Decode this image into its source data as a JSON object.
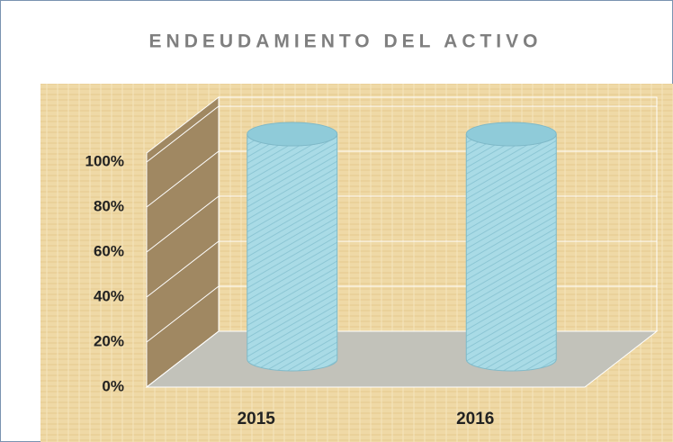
{
  "chart_data": {
    "type": "bar3d",
    "title": "ENDEUDAMIENTO DEL ACTIVO",
    "categories": [
      "2015",
      "2016"
    ],
    "values": [
      100,
      100
    ],
    "color": "#a9dbe6",
    "ylim": [
      0,
      100
    ],
    "yticks": [
      {
        "value": 0,
        "label": "0%"
      },
      {
        "value": 20,
        "label": "20%"
      },
      {
        "value": 40,
        "label": "40%"
      },
      {
        "value": 60,
        "label": "60%"
      },
      {
        "value": 80,
        "label": "80%"
      },
      {
        "value": 100,
        "label": "100%"
      }
    ],
    "grid": true
  }
}
